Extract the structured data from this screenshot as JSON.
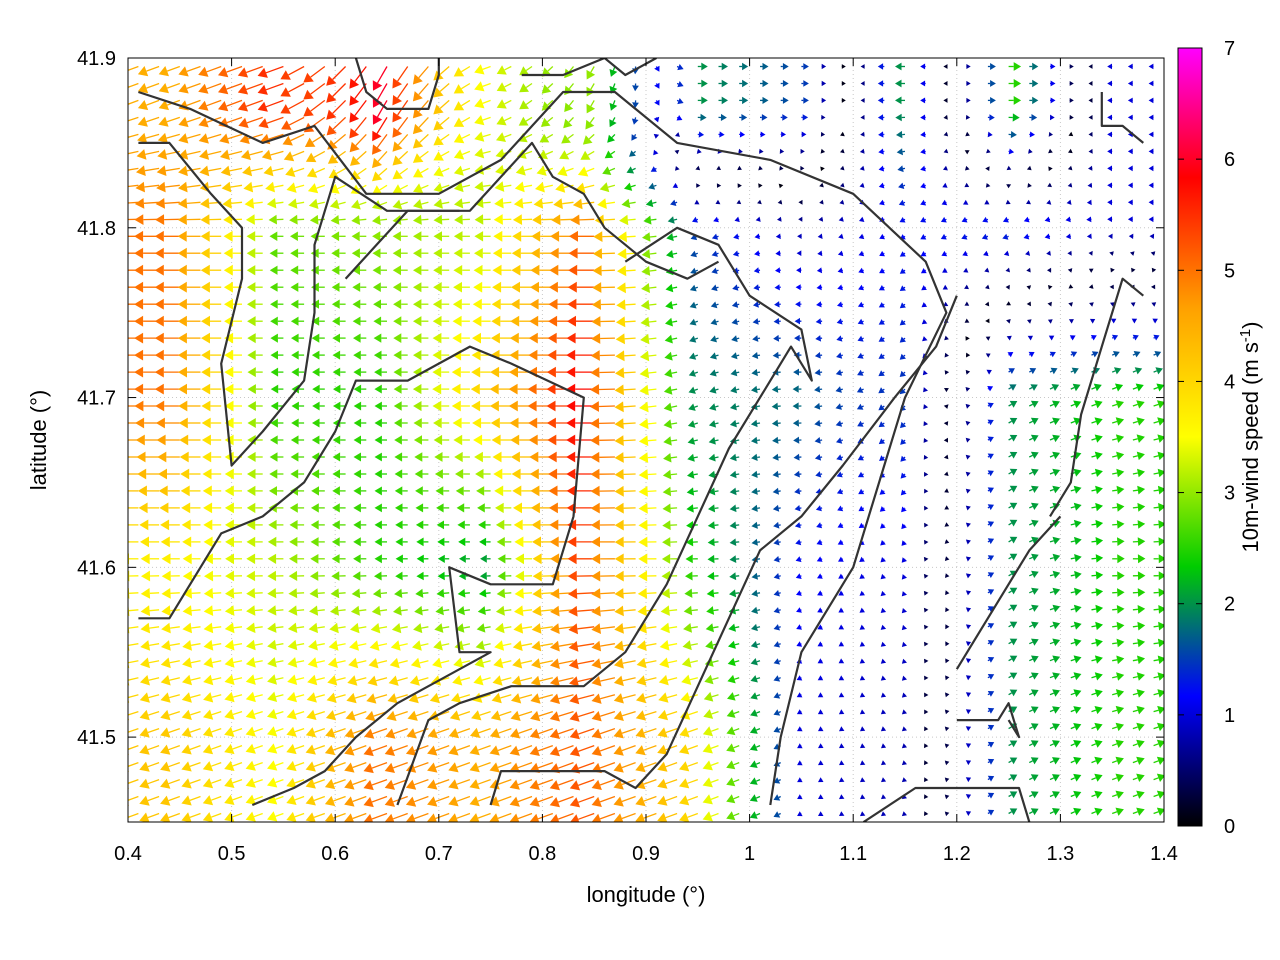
{
  "chart_data": {
    "type": "vector-field",
    "xlabel": "longitude (°)",
    "ylabel": "latitude (°)",
    "xlim": [
      0.4,
      1.4
    ],
    "ylim": [
      41.45,
      41.9
    ],
    "xticks": [
      "0.4",
      "0.5",
      "0.6",
      "0.7",
      "0.8",
      "0.9",
      "1",
      "1.1",
      "1.2",
      "1.3",
      "1.4"
    ],
    "yticks": [
      "41.5",
      "41.6",
      "41.7",
      "41.8",
      "41.9"
    ],
    "colorbar": {
      "label_main": "10m-wind speed (m s",
      "label_sup": "-1",
      "label_end": ")",
      "range": [
        0,
        7
      ],
      "ticks": [
        "0",
        "1",
        "2",
        "3",
        "4",
        "5",
        "6",
        "7"
      ],
      "stops": [
        "#000000",
        "#0000ff",
        "#00cc00",
        "#ffff00",
        "#ffa000",
        "#ff0000",
        "#ff00ff"
      ]
    },
    "grid": true,
    "field_sample": {
      "lon": [
        0.45,
        0.55,
        0.65,
        0.75,
        0.85,
        0.95,
        1.05,
        1.15,
        1.25,
        1.35
      ],
      "lat": [
        41.5,
        41.6,
        41.7,
        41.8,
        41.87
      ],
      "speed": [
        [
          4.2,
          3.5,
          5.0,
          4.5,
          5.2,
          4.0,
          1.0,
          0.8,
          2.0,
          2.5
        ],
        [
          3.6,
          3.2,
          2.5,
          2.0,
          5.3,
          2.5,
          1.2,
          1.0,
          2.0,
          2.5
        ],
        [
          5.0,
          2.5,
          2.5,
          4.0,
          5.8,
          2.0,
          1.8,
          1.5,
          2.0,
          2.5
        ],
        [
          5.0,
          2.8,
          3.0,
          3.2,
          5.0,
          1.5,
          0.8,
          1.2,
          1.5,
          1.0
        ],
        [
          4.5,
          5.5,
          6.0,
          3.5,
          3.0,
          2.0,
          1.5,
          2.0,
          2.5,
          1.0
        ]
      ],
      "direction": [
        [
          200,
          200,
          200,
          200,
          200,
          200,
          210,
          220,
          30,
          20
        ],
        [
          180,
          180,
          180,
          180,
          180,
          180,
          200,
          230,
          30,
          0
        ],
        [
          180,
          180,
          180,
          180,
          180,
          200,
          180,
          225,
          30,
          20
        ],
        [
          180,
          180,
          180,
          180,
          180,
          200,
          180,
          210,
          200,
          180
        ],
        [
          200,
          200,
          240,
          200,
          240,
          0,
          0,
          180,
          0,
          180
        ]
      ]
    }
  }
}
